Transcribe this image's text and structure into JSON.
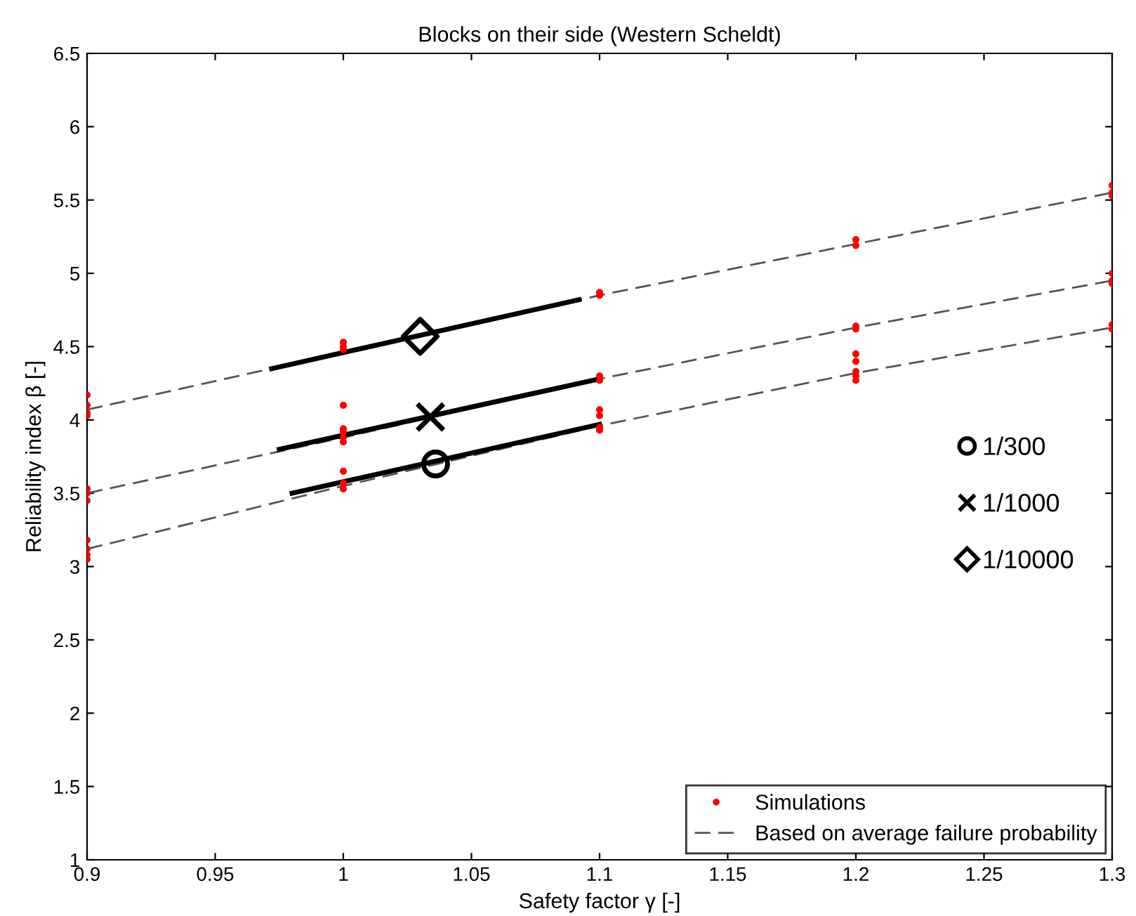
{
  "chart_data": {
    "type": "line",
    "title": "Blocks on their side (Western Scheldt)",
    "xlabel": "Safety factor γ [-]",
    "ylabel": "Reliability index β [-]",
    "xlim": [
      0.9,
      1.3
    ],
    "xticks": [
      0.9,
      0.95,
      1,
      1.05,
      1.1,
      1.15,
      1.2,
      1.25,
      1.3
    ],
    "ylim": [
      1,
      6.5
    ],
    "yticks": [
      1,
      1.5,
      2,
      2.5,
      3,
      3.5,
      4,
      4.5,
      5,
      5.5,
      6,
      6.5
    ],
    "grid": false,
    "legend": "bottom right",
    "series": [
      {
        "name": "Simulations",
        "type": "scatter",
        "marker": "circle",
        "color": "#ff0000",
        "x": [
          0.9,
          0.9,
          0.9,
          0.9,
          0.9,
          0.9,
          0.9,
          0.9,
          0.9,
          0.9,
          0.9,
          1,
          1,
          1,
          1,
          1,
          1,
          1,
          1,
          1,
          1,
          1,
          1.1,
          1.1,
          1.1,
          1.1,
          1.1,
          1.1,
          1.1,
          1.1,
          1.2,
          1.2,
          1.2,
          1.2,
          1.2,
          1.2,
          1.2,
          1.2,
          1.2,
          1.3,
          1.3,
          1.3,
          1.3,
          1.3,
          1.3,
          1.3,
          1.3
        ],
        "values": [
          4.17,
          4.1,
          4.05,
          4.03,
          3.53,
          3.5,
          3.45,
          3.18,
          3.12,
          3.08,
          3.05,
          4.53,
          4.5,
          4.48,
          4.1,
          3.94,
          3.92,
          3.88,
          3.85,
          3.65,
          3.57,
          3.53,
          4.87,
          4.85,
          4.3,
          4.27,
          4.07,
          4.03,
          3.95,
          3.93,
          5.23,
          5.19,
          4.64,
          4.62,
          4.45,
          4.4,
          4.33,
          4.3,
          4.27,
          5.6,
          5.55,
          5.53,
          5.0,
          4.95,
          4.93,
          4.65,
          4.62
        ]
      },
      {
        "name": "Based on average failure probability",
        "line_style": "dashed",
        "color": "#555555",
        "x": [
          0.9,
          1.0,
          1.1,
          1.2,
          1.3
        ],
        "values": [
          4.07,
          4.46,
          4.85,
          5.2,
          5.55
        ]
      },
      {
        "line_style": "dashed",
        "color": "#555555",
        "x": [
          0.9,
          1.0,
          1.1,
          1.2,
          1.3
        ],
        "values": [
          3.5,
          3.88,
          4.28,
          4.63,
          4.95
        ]
      },
      {
        "line_style": "dashed",
        "color": "#555555",
        "x": [
          0.9,
          1.0,
          1.1,
          1.2,
          1.3
        ],
        "values": [
          3.12,
          3.55,
          3.96,
          4.32,
          4.63
        ]
      },
      {
        "line_style": "solid",
        "color": "#000000",
        "x": [
          0.972,
          1.092
        ],
        "values": [
          4.35,
          4.82
        ]
      },
      {
        "line_style": "solid",
        "color": "#000000",
        "x": [
          0.975,
          1.1
        ],
        "values": [
          3.8,
          4.28
        ]
      },
      {
        "line_style": "solid",
        "color": "#000000",
        "x": [
          0.98,
          1.1
        ],
        "values": [
          3.5,
          3.97
        ]
      },
      {
        "name": "1/300",
        "type": "scatter",
        "marker": "circle",
        "color": "#000000",
        "x": [
          1.036
        ],
        "values": [
          3.7
        ]
      },
      {
        "name": "1/1000",
        "type": "scatter",
        "marker": "cross",
        "color": "#000000",
        "x": [
          1.034
        ],
        "values": [
          4.02
        ]
      },
      {
        "name": "1/10000",
        "type": "scatter",
        "marker": "diamond",
        "color": "#000000",
        "x": [
          1.03
        ],
        "values": [
          4.57
        ]
      }
    ]
  }
}
